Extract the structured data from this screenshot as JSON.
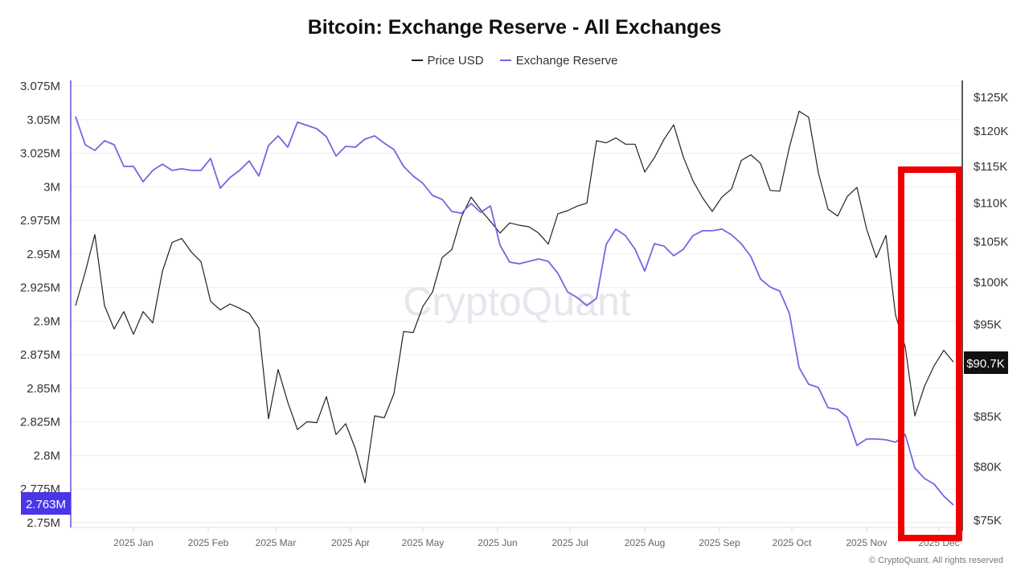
{
  "chart_data": {
    "type": "line",
    "title": "Bitcoin: Exchange Reserve - All Exchanges",
    "legend_position": "top",
    "grid": true,
    "watermark": "CryptoQuant",
    "footer": "© CryptoQuant. All rights reserved",
    "x_tick_labels": [
      "2025 Jan",
      "2025 Feb",
      "2025 Mar",
      "2025 Apr",
      "2025 May",
      "2025 Jun",
      "2025 Jul",
      "2025 Aug",
      "2025 Sep",
      "2025 Oct",
      "2025 Nov",
      "2025 Dec"
    ],
    "left_axis": {
      "scale": "linear",
      "ylim": [
        2.75,
        3.075
      ],
      "unit": "M",
      "tick_labels": [
        "3.075M",
        "3.05M",
        "3.025M",
        "3M",
        "2.975M",
        "2.95M",
        "2.925M",
        "2.9M",
        "2.875M",
        "2.85M",
        "2.825M",
        "2.8M",
        "2.775M",
        "2.75M"
      ],
      "current_label": "2.763M"
    },
    "right_axis": {
      "scale": "log",
      "ylim": [
        75,
        125
      ],
      "unit": "K USD",
      "ticks": [
        125,
        120,
        115,
        110,
        105,
        100,
        95,
        85,
        80,
        75
      ],
      "tick_labels": [
        "$125K",
        "$120K",
        "$115K",
        "$110K",
        "$105K",
        "$100K",
        "$95K",
        "$85K",
        "$80K",
        "$75K"
      ],
      "current_label": "$90.7K"
    },
    "x": [
      "2024-12-08",
      "2024-12-12",
      "2024-12-16",
      "2024-12-20",
      "2024-12-24",
      "2024-12-28",
      "2025-01-01",
      "2025-01-05",
      "2025-01-09",
      "2025-01-13",
      "2025-01-17",
      "2025-01-21",
      "2025-01-25",
      "2025-01-29",
      "2025-02-02",
      "2025-02-06",
      "2025-02-10",
      "2025-02-14",
      "2025-02-18",
      "2025-02-22",
      "2025-02-26",
      "2025-03-02",
      "2025-03-06",
      "2025-03-10",
      "2025-03-14",
      "2025-03-18",
      "2025-03-22",
      "2025-03-26",
      "2025-03-30",
      "2025-04-03",
      "2025-04-07",
      "2025-04-11",
      "2025-04-15",
      "2025-04-19",
      "2025-04-23",
      "2025-04-27",
      "2025-05-01",
      "2025-05-05",
      "2025-05-09",
      "2025-05-13",
      "2025-05-17",
      "2025-05-21",
      "2025-05-25",
      "2025-05-29",
      "2025-06-02",
      "2025-06-06",
      "2025-06-10",
      "2025-06-14",
      "2025-06-18",
      "2025-06-22",
      "2025-06-26",
      "2025-06-30",
      "2025-07-04",
      "2025-07-08",
      "2025-07-12",
      "2025-07-16",
      "2025-07-20",
      "2025-07-24",
      "2025-07-28",
      "2025-08-01",
      "2025-08-05",
      "2025-08-09",
      "2025-08-13",
      "2025-08-17",
      "2025-08-21",
      "2025-08-25",
      "2025-08-29",
      "2025-09-02",
      "2025-09-06",
      "2025-09-10",
      "2025-09-14",
      "2025-09-18",
      "2025-09-22",
      "2025-09-26",
      "2025-09-30",
      "2025-10-04",
      "2025-10-08",
      "2025-10-12",
      "2025-10-16",
      "2025-10-20",
      "2025-10-24",
      "2025-10-28",
      "2025-11-01",
      "2025-11-05",
      "2025-11-09",
      "2025-11-13",
      "2025-11-17",
      "2025-11-21",
      "2025-11-25",
      "2025-11-29",
      "2025-12-03",
      "2025-12-07"
    ],
    "series": [
      {
        "name": "Price USD",
        "axis": "right",
        "color": "#222222",
        "values": [
          97.1,
          101.1,
          105.8,
          97.1,
          94.4,
          96.4,
          93.8,
          96.4,
          95.1,
          101.2,
          104.8,
          105.3,
          103.6,
          102.4,
          97.6,
          96.6,
          97.3,
          96.8,
          96.2,
          94.5,
          84.7,
          89.9,
          86.4,
          83.6,
          84.4,
          84.3,
          87.0,
          83.1,
          84.2,
          81.7,
          78.4,
          85.0,
          84.8,
          87.3,
          94.1,
          94.0,
          97.0,
          98.7,
          102.9,
          103.9,
          108.1,
          110.7,
          109.0,
          107.5,
          106.0,
          107.3,
          107.0,
          106.8,
          106.0,
          104.6,
          108.5,
          108.9,
          109.5,
          109.9,
          118.5,
          118.2,
          118.9,
          118.0,
          118.0,
          114.1,
          116.1,
          118.7,
          120.8,
          116.2,
          112.9,
          110.6,
          108.8,
          110.7,
          111.8,
          115.7,
          116.5,
          115.3,
          111.6,
          111.5,
          117.6,
          122.8,
          121.9,
          114.0,
          109.1,
          108.2,
          110.8,
          112.0,
          106.5,
          102.9,
          105.7,
          96.0,
          92.4,
          85.0,
          88.1,
          90.3,
          92.0,
          90.7
        ]
      },
      {
        "name": "Exchange Reserve",
        "axis": "left",
        "color": "#7466e3",
        "values": [
          3.0523,
          3.0313,
          3.0271,
          3.0343,
          3.0313,
          3.0152,
          3.0152,
          3.0038,
          3.0122,
          3.0169,
          3.0122,
          3.0134,
          3.0122,
          3.0122,
          3.0211,
          2.999,
          3.0068,
          3.0122,
          3.0193,
          3.008,
          3.0307,
          3.0379,
          3.0295,
          3.0481,
          3.0457,
          3.0433,
          3.0373,
          3.0229,
          3.0301,
          3.0295,
          3.0355,
          3.0379,
          3.0325,
          3.0277,
          3.0152,
          3.008,
          3.0026,
          2.9936,
          2.9906,
          2.9816,
          2.9804,
          2.9876,
          2.981,
          2.9858,
          2.9565,
          2.9439,
          2.9427,
          2.9445,
          2.9463,
          2.9445,
          2.9356,
          2.9218,
          2.9176,
          2.9116,
          2.917,
          2.9571,
          2.9685,
          2.9637,
          2.9535,
          2.9373,
          2.9577,
          2.9559,
          2.9487,
          2.9535,
          2.9637,
          2.9673,
          2.9673,
          2.9685,
          2.9643,
          2.9577,
          2.9481,
          2.9314,
          2.9254,
          2.9224,
          2.9056,
          2.8655,
          2.853,
          2.8506,
          2.8356,
          2.8344,
          2.8284,
          2.8075,
          2.8123,
          2.8123,
          2.8117,
          2.8099,
          2.8158,
          2.7907,
          2.7829,
          2.7787,
          2.7698,
          2.7632
        ]
      }
    ],
    "annotation": {
      "type": "highlight-rectangle",
      "color": "#ee0000",
      "from": "2025-11-16",
      "to": "2025-12-08"
    },
    "badge_colors": {
      "left": "#4a35e8",
      "right": "#111111"
    }
  }
}
